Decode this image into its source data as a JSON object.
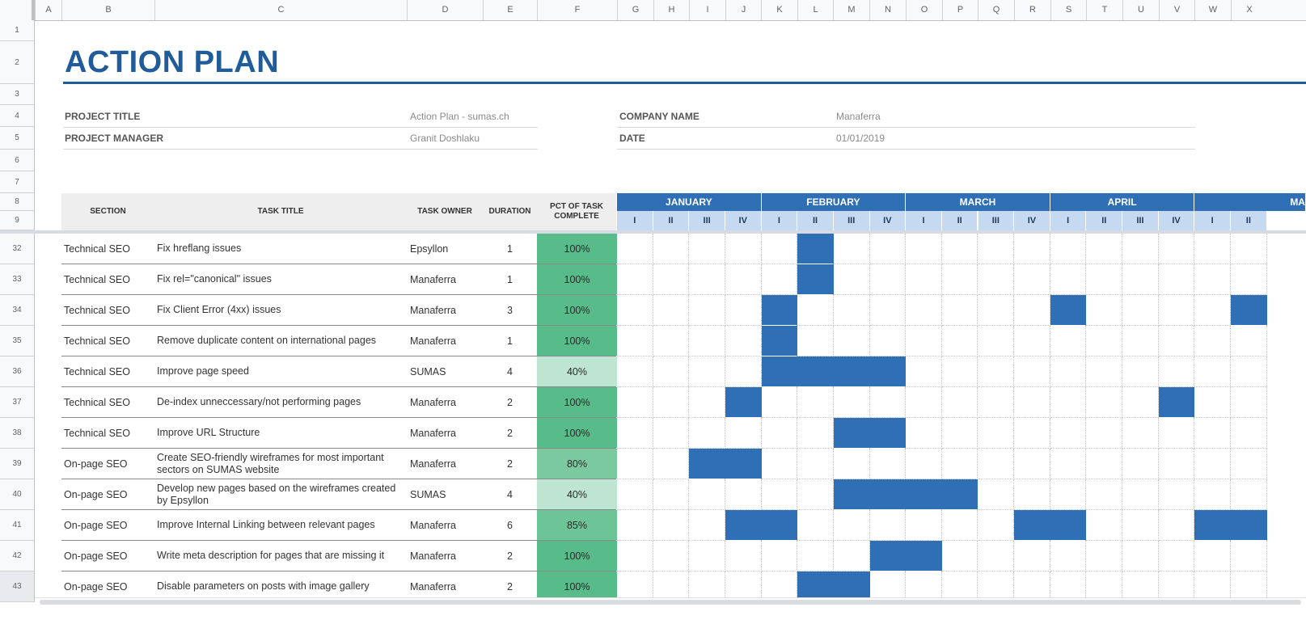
{
  "columns": [
    "A",
    "B",
    "C",
    "D",
    "E",
    "F",
    "G",
    "H",
    "I",
    "J",
    "K",
    "L",
    "M",
    "N",
    "O",
    "P",
    "Q",
    "R",
    "S",
    "T",
    "U",
    "V",
    "W",
    "X"
  ],
  "top_rows": [
    "1",
    "2",
    "3",
    "4",
    "5",
    "6",
    "7",
    "8",
    "9"
  ],
  "title": "ACTION PLAN",
  "info": {
    "project_title_label": "PROJECT TITLE",
    "project_title_value": "Action Plan - sumas.ch",
    "project_manager_label": "PROJECT MANAGER",
    "project_manager_value": "Granit Doshlaku",
    "company_name_label": "COMPANY NAME",
    "company_name_value": "Manaferra",
    "date_label": "DATE",
    "date_value": "01/01/2019"
  },
  "headers": {
    "section": "SECTION",
    "task_title": "TASK TITLE",
    "task_owner": "TASK OWNER",
    "duration": "DURATION",
    "pct_line1": "PCT OF TASK",
    "pct_line2": "COMPLETE"
  },
  "months": [
    "JANUARY",
    "FEBRUARY",
    "MARCH",
    "APRIL",
    "MA"
  ],
  "weeks": [
    "I",
    "II",
    "III",
    "IV",
    "I",
    "II",
    "III",
    "IV",
    "I",
    "II",
    "III",
    "IV",
    "I",
    "II",
    "III",
    "IV",
    "I",
    "II"
  ],
  "colors": {
    "accent": "#1f5c99",
    "gantt_bar": "#2f6fb5",
    "pct_100": "#57bb8a",
    "pct_85": "#6dc497",
    "pct_80": "#7bca9f",
    "pct_40": "#bde5d1"
  },
  "rows": [
    {
      "num": "32",
      "section": "Technical SEO",
      "task": "Fix hreflang issues",
      "owner": "Epsyllon",
      "duration": "1",
      "pct": "100%",
      "pct_fill": 1.0,
      "bars": [
        5
      ]
    },
    {
      "num": "33",
      "section": "Technical SEO",
      "task": "Fix rel=\"canonical\" issues",
      "owner": "Manaferra",
      "duration": "1",
      "pct": "100%",
      "pct_fill": 1.0,
      "bars": [
        5
      ]
    },
    {
      "num": "34",
      "section": "Technical SEO",
      "task": "Fix Client Error (4xx) issues",
      "owner": "Manaferra",
      "duration": "3",
      "pct": "100%",
      "pct_fill": 1.0,
      "bars": [
        4,
        12,
        17
      ]
    },
    {
      "num": "35",
      "section": "Technical SEO",
      "task": "Remove duplicate content on international pages",
      "owner": "Manaferra",
      "duration": "1",
      "pct": "100%",
      "pct_fill": 1.0,
      "bars": [
        4
      ]
    },
    {
      "num": "36",
      "section": "Technical SEO",
      "task": "Improve page speed",
      "owner": "SUMAS",
      "duration": "4",
      "pct": "40%",
      "pct_fill": 0.4,
      "bars": [
        4,
        5,
        6,
        7
      ]
    },
    {
      "num": "37",
      "section": "Technical SEO",
      "task": "De-index unneccessary/not performing pages",
      "owner": "Manaferra",
      "duration": "2",
      "pct": "100%",
      "pct_fill": 1.0,
      "bars": [
        3,
        15
      ]
    },
    {
      "num": "38",
      "section": "Technical SEO",
      "task": "Improve URL Structure",
      "owner": "Manaferra",
      "duration": "2",
      "pct": "100%",
      "pct_fill": 1.0,
      "bars": [
        6,
        7
      ]
    },
    {
      "num": "39",
      "section": "On-page SEO",
      "task": "Create SEO-friendly wireframes for most important sectors on SUMAS website",
      "owner": "Manaferra",
      "duration": "2",
      "pct": "80%",
      "pct_fill": 0.8,
      "bars": [
        2,
        3
      ]
    },
    {
      "num": "40",
      "section": "On-page SEO",
      "task": "Develop new pages based on the wireframes created by Epsyllon",
      "owner": "SUMAS",
      "duration": "4",
      "pct": "40%",
      "pct_fill": 0.4,
      "bars": [
        6,
        7,
        8,
        9
      ]
    },
    {
      "num": "41",
      "section": "On-page SEO",
      "task": "Improve Internal Linking between relevant pages",
      "owner": "Manaferra",
      "duration": "6",
      "pct": "85%",
      "pct_fill": 0.85,
      "bars": [
        3,
        4,
        11,
        12,
        16,
        17
      ]
    },
    {
      "num": "42",
      "section": "On-page SEO",
      "task": "Write meta description for pages that are missing it",
      "owner": "Manaferra",
      "duration": "2",
      "pct": "100%",
      "pct_fill": 1.0,
      "bars": [
        7,
        8
      ]
    },
    {
      "num": "43",
      "section": "On-page SEO",
      "task": "Disable parameters on posts with image gallery",
      "owner": "Manaferra",
      "duration": "2",
      "pct": "100%",
      "pct_fill": 1.0,
      "bars": [
        5,
        6
      ]
    }
  ]
}
